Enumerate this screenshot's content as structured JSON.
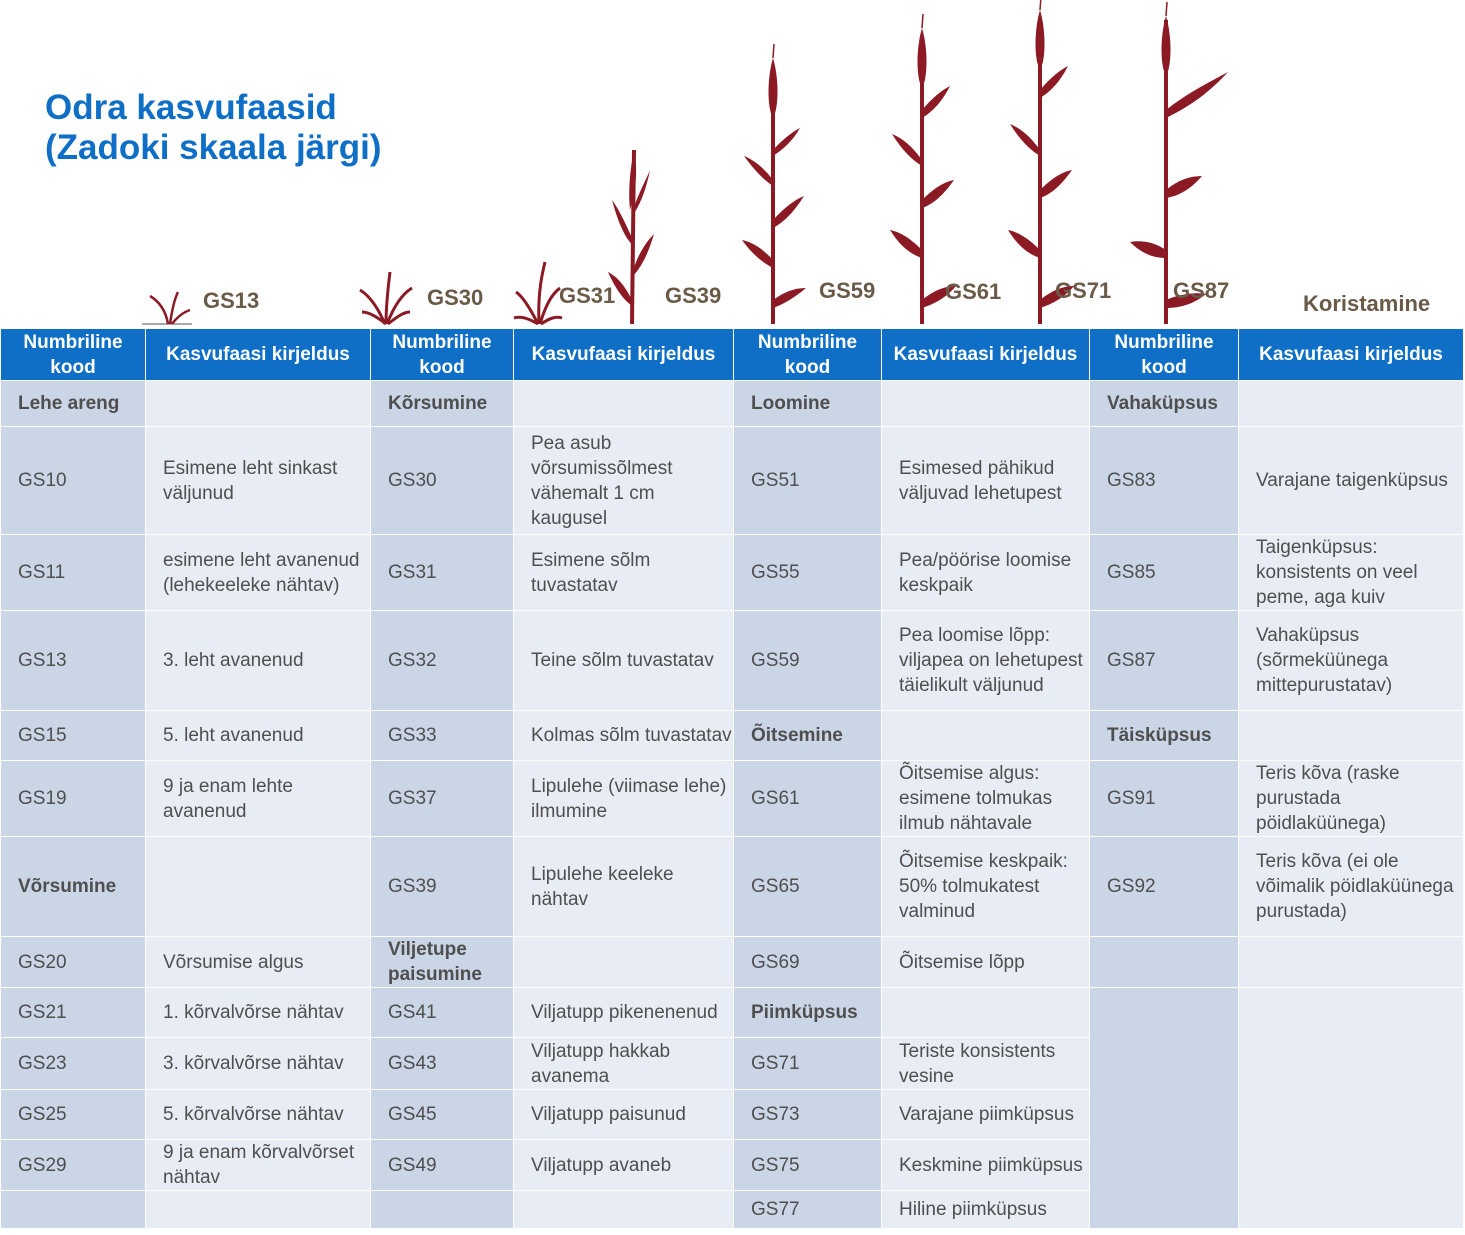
{
  "title": {
    "line1": "Odra kasvufaasid",
    "line2": "(Zadoki skaala järgi)"
  },
  "stages": [
    "GS13",
    "GS30",
    "GS31",
    "GS39",
    "GS59",
    "GS61",
    "GS71",
    "GS87",
    "Koristamine"
  ],
  "colors": {
    "header_bg": "#0f6fc6",
    "code_bg": "#cad5e6",
    "desc_bg": "#e8ecf4",
    "plant": "#8b1a24",
    "title": "#0f6fc6"
  },
  "table": {
    "headers": [
      "Numbriline kood",
      "Kasvufaasi kirjeldus",
      "Numbriline kood",
      "Kasvufaasi kirjeldus",
      "Numbriline kood",
      "Kasvufaasi kirjeldus",
      "Numbriline kood",
      "Kasvufaasi kirjeldus"
    ],
    "rows": [
      [
        "Lehe areng",
        "",
        "Kõrsumine",
        "",
        "Loomine",
        "",
        "Vahaküpsus",
        ""
      ],
      [
        "GS10",
        "Esimene leht sinkast väljunud",
        "GS30",
        "Pea asub võrsumissõlmest vähemalt 1 cm kaugusel",
        "GS51",
        "Esimesed pähikud väljuvad lehetupest",
        "GS83",
        " Varajane taigenküpsus"
      ],
      [
        "GS11",
        "esimene leht avanenud (lehekeeleke nähtav)",
        "GS31",
        "Esimene sõlm tuvastatav",
        "GS55",
        "Pea/pöörise loomise keskpaik",
        "GS85",
        "Taigenküpsus: konsistents on veel peme, aga kuiv"
      ],
      [
        "GS13",
        "3. leht avanenud",
        "GS32",
        "Teine sõlm tuvastatav",
        "GS59",
        "Pea loomise lõpp: viljapea on lehetupest täielikult väljunud",
        "GS87",
        "Vahaküpsus (sõrmeküünega mittepurustatav)"
      ],
      [
        "GS15",
        "5. leht avanenud",
        "GS33",
        "Kolmas sõlm tuvastatav",
        "Õitsemine",
        "",
        "Täisküpsus",
        ""
      ],
      [
        "GS19",
        "9 ja enam lehte avanenud",
        "GS37",
        "Lipulehe (viimase lehe) ilmumine",
        "GS61",
        "Õitsemise  algus: esimene tolmukas ilmub  nähtavale",
        "GS91",
        "Teris kõva (raske purustada pöidlaküünega)"
      ],
      [
        "Võrsumine",
        "",
        "GS39",
        "Lipulehe keeleke nähtav",
        "GS65",
        "Õitsemise keskpaik: 50% tolmukatest valminud",
        "GS92",
        "Teris kõva (ei ole võimalik pöidlaküünega purustada)"
      ],
      [
        "GS20",
        "Võrsumise  algus",
        "Viljetupe paisumine",
        "",
        "GS69",
        "Õitsemise lõpp",
        "",
        ""
      ],
      [
        "GS21",
        "1. kõrvalvõrse nähtav",
        "GS41",
        "Viljatupp pikenenenud",
        "Piimküpsus",
        "",
        "",
        ""
      ],
      [
        "GS23",
        "3. kõrvalvõrse nähtav",
        "GS43",
        "Viljatupp  hakkab avanema",
        "GS71",
        "Teriste konsistents vesine",
        "",
        ""
      ],
      [
        "GS25",
        "5. kõrvalvõrse nähtav",
        "GS45",
        "Viljatupp  paisunud",
        "GS73",
        "Varajane piimküpsus",
        "",
        ""
      ],
      [
        "GS29",
        "9 ja enam kõrvalvõrset nähtav",
        "GS49",
        "Viljatupp  avaneb",
        "GS75",
        "Keskmine piimküpsus",
        "",
        ""
      ],
      [
        "",
        "",
        "",
        "",
        "GS77",
        "Hiline piimküpsus",
        "",
        ""
      ]
    ]
  }
}
